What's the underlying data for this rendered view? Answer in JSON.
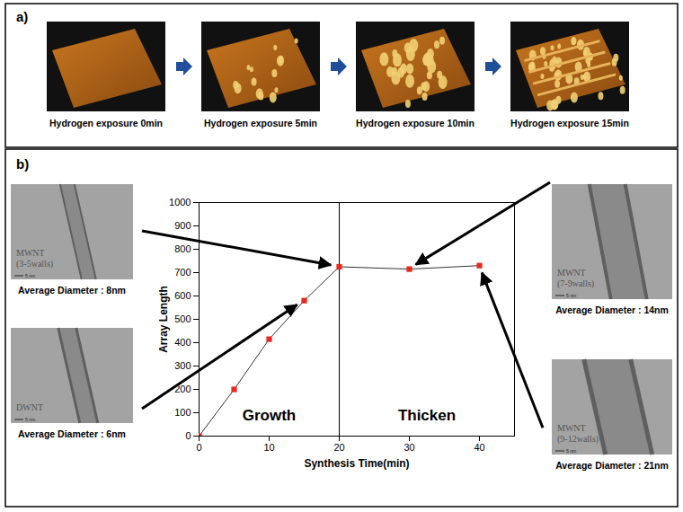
{
  "panels": [
    "a)",
    "b)"
  ],
  "afm_images": [
    {
      "caption": "Hydrogen exposure 0min"
    },
    {
      "caption": "Hydrogen exposure 5min"
    },
    {
      "caption": "Hydrogen exposure 10min"
    },
    {
      "caption": "Hydrogen exposure 15min"
    }
  ],
  "tem_images": [
    {
      "label": [
        "MWNT",
        "(3-5walls)"
      ],
      "caption": "Average Diameter : 8nm",
      "scale_bar": "5 nm",
      "points_to": 20
    },
    {
      "label": [
        "DWNT"
      ],
      "caption": "Average Diameter : 6nm",
      "scale_bar": "5 nm",
      "points_to": 15
    },
    {
      "label": [
        "MWNT",
        "(7-9walls)"
      ],
      "caption": "Average Diameter : 14nm",
      "scale_bar": "5 nm",
      "points_to": 30
    },
    {
      "label": [
        "MWNT",
        "(9-12walls)"
      ],
      "caption": "Average Diameter : 21nm",
      "scale_bar": "5 nm",
      "points_to": 40
    }
  ],
  "chart_data": {
    "type": "line",
    "x_label": "Synthesis Time(min)",
    "y_label": "Array Length",
    "x": [
      0,
      5,
      10,
      15,
      20,
      30,
      40
    ],
    "values": [
      0,
      200,
      415,
      580,
      725,
      715,
      730
    ],
    "color": "#e8281e",
    "marker": "square",
    "xlim": [
      0,
      45
    ],
    "xticks": [
      0,
      10,
      20,
      30,
      40
    ],
    "ylim": [
      0,
      1000
    ],
    "yticks": [
      0,
      100,
      200,
      300,
      400,
      500,
      600,
      700,
      800,
      900,
      1000
    ],
    "grid": false,
    "phases": [
      {
        "label": "Growth",
        "xmin": 0,
        "xmax": 20
      },
      {
        "label": "Thicken",
        "xmin": 20,
        "xmax": 45
      }
    ]
  }
}
